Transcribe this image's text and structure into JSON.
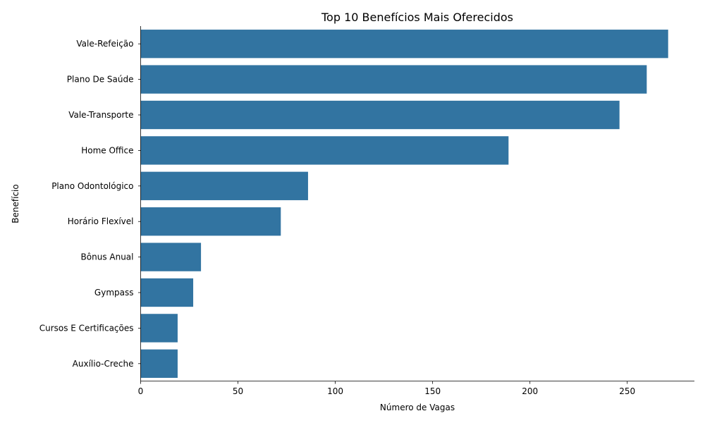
{
  "chart_data": {
    "type": "bar",
    "orientation": "horizontal",
    "title": "Top 10 Benefícios Mais Oferecidos",
    "xlabel": "Número de Vagas",
    "ylabel": "Benefício",
    "categories": [
      "Vale-Refeição",
      "Plano De Saúde",
      "Vale-Transporte",
      "Home Office",
      "Plano Odontológico",
      "Horário Flexível",
      "Bônus Anual",
      "Gympass",
      "Cursos E Certificações",
      "Auxílio-Creche"
    ],
    "values": [
      271,
      260,
      246,
      189,
      86,
      72,
      31,
      27,
      19,
      19
    ],
    "xlim": [
      0,
      284.5
    ],
    "xticks": [
      0,
      50,
      100,
      150,
      200,
      250
    ],
    "bar_color": "#3274a1",
    "grid": false,
    "legend": "none"
  }
}
